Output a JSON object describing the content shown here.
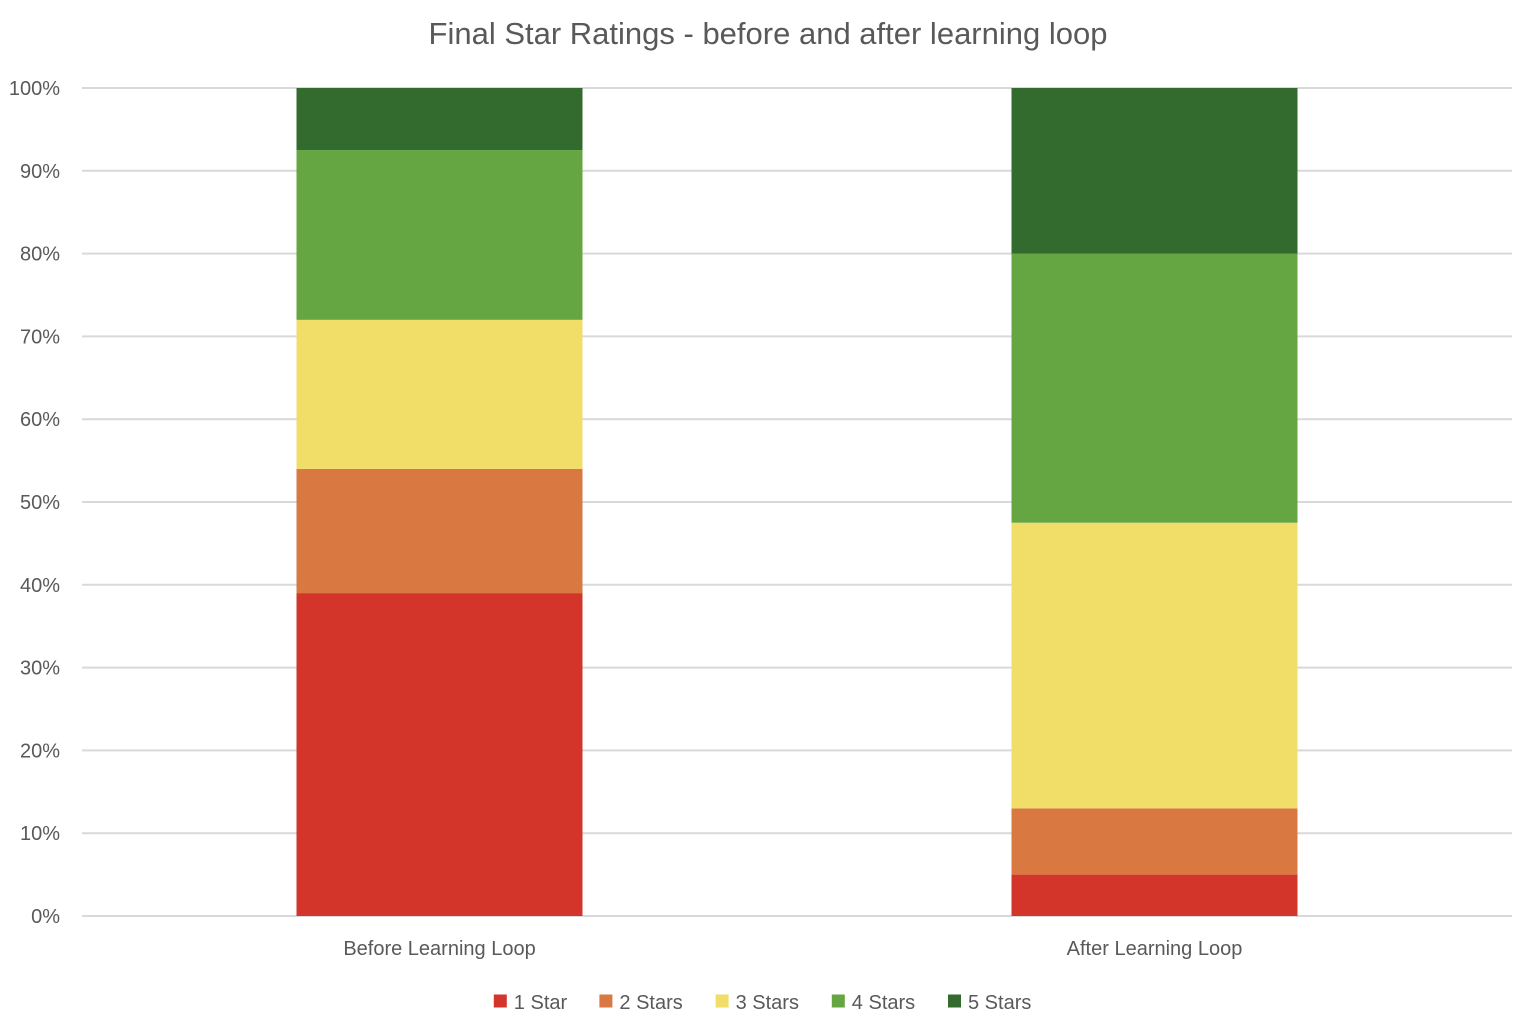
{
  "chart_data": {
    "type": "bar",
    "stacked": true,
    "percent": true,
    "title": "Final Star Ratings - before and after learning loop",
    "xlabel": "",
    "ylabel": "",
    "ylim": [
      0,
      100
    ],
    "yticks": [
      "0%",
      "10%",
      "20%",
      "30%",
      "40%",
      "50%",
      "60%",
      "70%",
      "80%",
      "90%",
      "100%"
    ],
    "categories": [
      "Before Learning Loop",
      "After Learning Loop"
    ],
    "series": [
      {
        "name": "1 Star",
        "color": "#d4352b",
        "values": [
          39,
          5
        ]
      },
      {
        "name": "2 Stars",
        "color": "#d97941",
        "values": [
          15,
          8
        ]
      },
      {
        "name": "3 Stars",
        "color": "#f0de68",
        "values": [
          18,
          34.5
        ]
      },
      {
        "name": "4 Stars",
        "color": "#66a642",
        "values": [
          20.5,
          32.5
        ]
      },
      {
        "name": "5 Stars",
        "color": "#336b2e",
        "values": [
          7.5,
          20
        ]
      }
    ],
    "grid": true,
    "legend": "bottom"
  }
}
